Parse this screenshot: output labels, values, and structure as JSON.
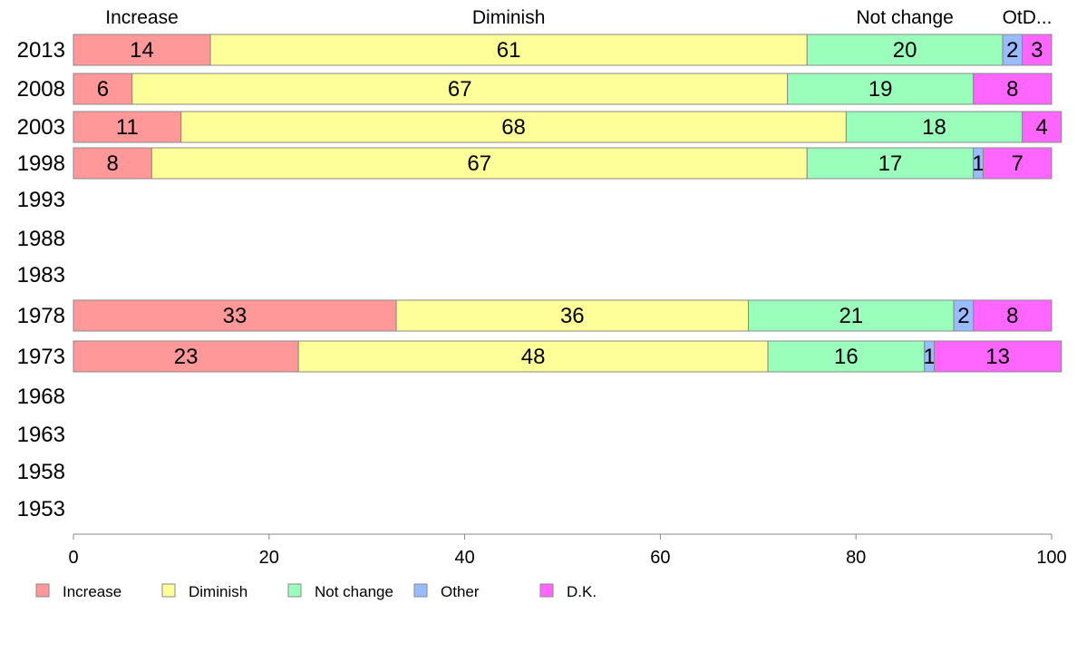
{
  "chart_data": {
    "type": "bar",
    "orientation": "horizontal",
    "stacked": true,
    "categories": [
      "2013",
      "2008",
      "2003",
      "1998",
      "1993",
      "1988",
      "1983",
      "1978",
      "1973",
      "1968",
      "1963",
      "1958",
      "1953"
    ],
    "series": [
      {
        "name": "Increase",
        "color": "#ff9999",
        "values": [
          14,
          6,
          11,
          8,
          null,
          null,
          null,
          33,
          23,
          null,
          null,
          null,
          null
        ]
      },
      {
        "name": "Diminish",
        "color": "#ffff99",
        "values": [
          61,
          67,
          68,
          67,
          null,
          null,
          null,
          36,
          48,
          null,
          null,
          null,
          null
        ]
      },
      {
        "name": "Not change",
        "color": "#99ffbb",
        "values": [
          20,
          19,
          18,
          17,
          null,
          null,
          null,
          21,
          16,
          null,
          null,
          null,
          null
        ]
      },
      {
        "name": "Other",
        "color": "#99bbff",
        "values": [
          2,
          0,
          0,
          1,
          null,
          null,
          null,
          2,
          1,
          null,
          null,
          null,
          null
        ]
      },
      {
        "name": "D.K.",
        "color": "#ff66ff",
        "values": [
          3,
          8,
          4,
          7,
          null,
          null,
          null,
          8,
          13,
          null,
          null,
          null,
          null
        ]
      }
    ],
    "top_labels": [
      "Increase",
      "Diminish",
      "Not change",
      "OtD..."
    ],
    "xlim": [
      0,
      100
    ],
    "xticks": [
      0,
      20,
      40,
      60,
      80,
      100
    ],
    "legend_position": "bottom",
    "grid": false
  }
}
